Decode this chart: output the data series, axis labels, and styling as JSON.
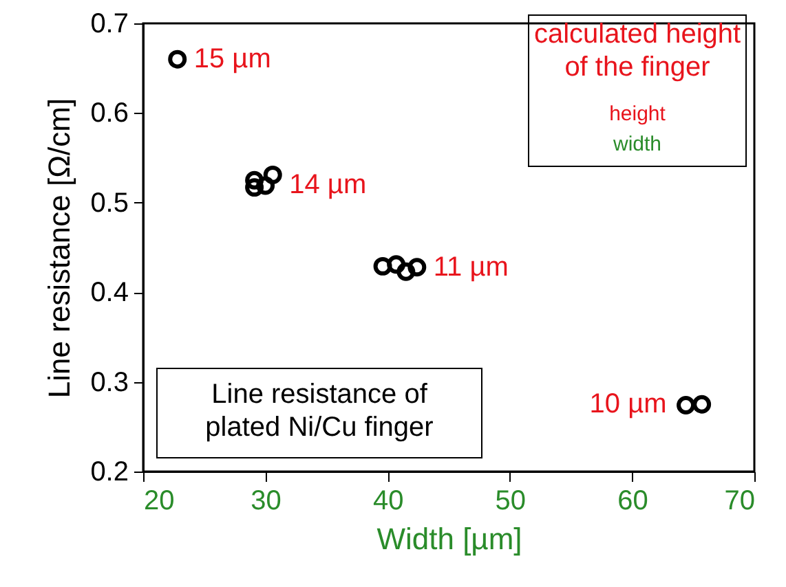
{
  "chart_data": {
    "type": "scatter",
    "xlabel": "Width [µm]",
    "ylabel": "Line resistance [Ω/cm]",
    "series": [
      {
        "color": "#000000",
        "x": [
          22.8,
          29.1,
          29.1,
          30.0,
          30.6,
          39.6,
          40.7,
          41.5,
          42.4,
          64.4,
          65.7
        ],
        "values": [
          0.66,
          0.525,
          0.517,
          0.519,
          0.531,
          0.429,
          0.431,
          0.423,
          0.428,
          0.274,
          0.275
        ]
      }
    ],
    "marker": "circle",
    "xlim": [
      20,
      70
    ],
    "xticks": [
      20,
      30,
      40,
      50,
      60,
      70
    ],
    "ylim": [
      0.2,
      0.7
    ],
    "yticks": [
      0.2,
      0.3,
      0.4,
      0.5,
      0.6,
      0.7
    ],
    "grid": false,
    "annotations": [
      {
        "text": "15 µm",
        "x": 22.8,
        "y": 0.66
      },
      {
        "text": "14 µm",
        "x": 30.6,
        "y": 0.52
      },
      {
        "text": "11 µm",
        "x": 42.4,
        "y": 0.428
      },
      {
        "text": "10 µm",
        "x": 64.4,
        "y": 0.275
      },
      "calculated height\nof the finger",
      "height",
      "width",
      "Line resistance of\nplated Ni/Cu finger"
    ]
  }
}
